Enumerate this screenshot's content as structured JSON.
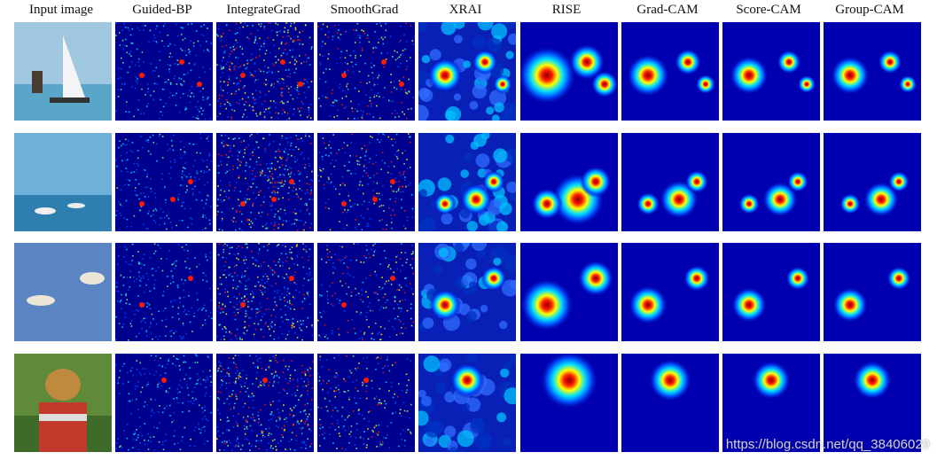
{
  "columns": [
    "Input image",
    "Guided-BP",
    "IntegrateGrad",
    "SmoothGrad",
    "XRAI",
    "RISE",
    "Grad-CAM",
    "Score-CAM",
    "Group-CAM"
  ],
  "rows": [
    "sailboats",
    "boats",
    "birds",
    "dog"
  ],
  "watermark": "https://blog.csdn.net/qq_38406029",
  "colors": {
    "cold": "#00008f",
    "blue": "#0050ff",
    "cyan": "#00e0ff",
    "yellow": "#ffff00",
    "red": "#ff1a00",
    "darkred": "#8b0000"
  },
  "icons": [
    "sailboat",
    "boat",
    "bird",
    "dog"
  ]
}
